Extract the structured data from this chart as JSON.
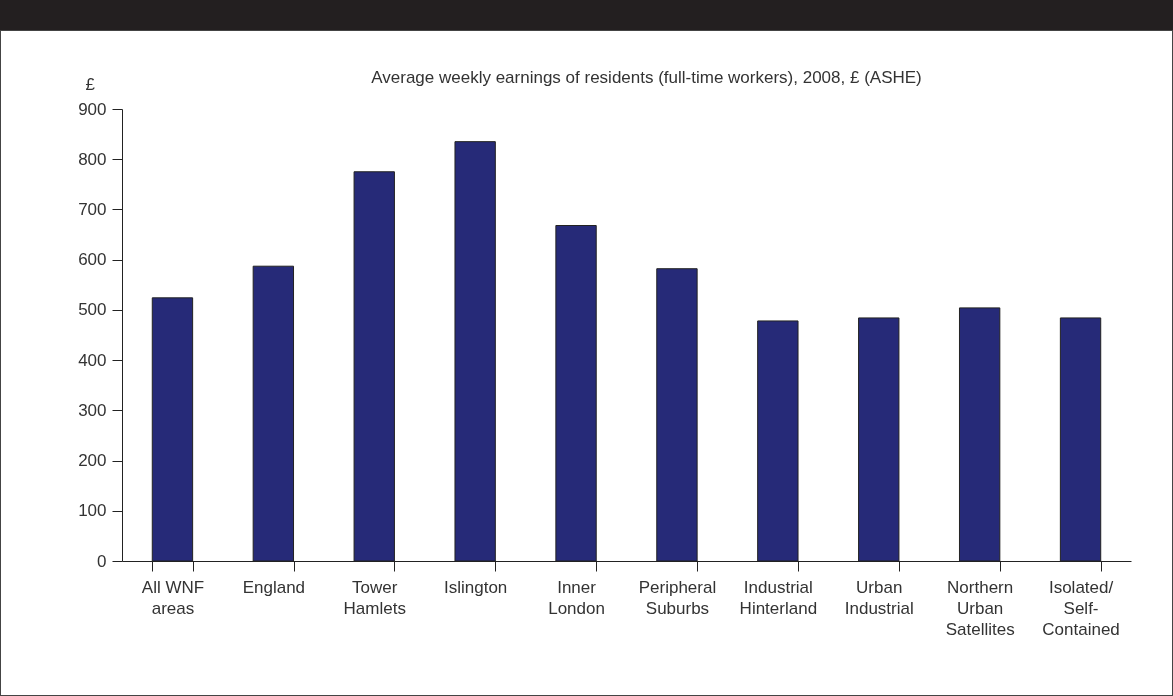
{
  "chart_data": {
    "type": "bar",
    "title": "Average weekly earnings of residents (full-time workers), 2008, £ (ASHE)",
    "ylabel": "£",
    "categories": [
      "All WNF\nareas",
      "England",
      "Tower\nHamlets",
      "Islington",
      "Inner\nLondon",
      "Peripheral\nSuburbs",
      "Industrial\nHinterland",
      "Urban\nIndustrial",
      "Northern\nUrban\nSatellites",
      "Isolated/\nSelf-\nContained"
    ],
    "values": [
      524,
      587,
      775,
      835,
      668,
      582,
      478,
      484,
      504,
      484
    ],
    "color": "#262a78",
    "ylim": [
      0,
      900
    ],
    "yticks": [
      0,
      100,
      200,
      300,
      400,
      500,
      600,
      700,
      800,
      900
    ],
    "grid": false
  }
}
